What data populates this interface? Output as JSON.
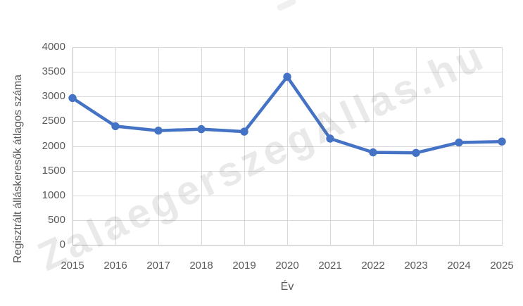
{
  "watermark": {
    "text": "ZalaegerszegAllas.hu"
  },
  "chart_data": {
    "type": "line",
    "title": "",
    "xlabel": "Év",
    "ylabel": "Regisztrált álláskeresők átlagos száma",
    "categories": [
      "2015",
      "2016",
      "2017",
      "2018",
      "2019",
      "2020",
      "2021",
      "2022",
      "2023",
      "2024",
      "2025"
    ],
    "values": [
      2970,
      2400,
      2310,
      2340,
      2290,
      3400,
      2150,
      1870,
      1860,
      2070,
      2090
    ],
    "ylim": [
      0,
      4000
    ],
    "yticks": [
      0,
      500,
      1000,
      1500,
      2000,
      2500,
      3000,
      3500,
      4000
    ],
    "grid": true,
    "legend": "none",
    "line_color": "#4472C4",
    "marker_color": "#4472C4",
    "gridline_color": "#D9D9D9",
    "axis_line_color": "#BFBFBF",
    "label_color": "#595959"
  }
}
